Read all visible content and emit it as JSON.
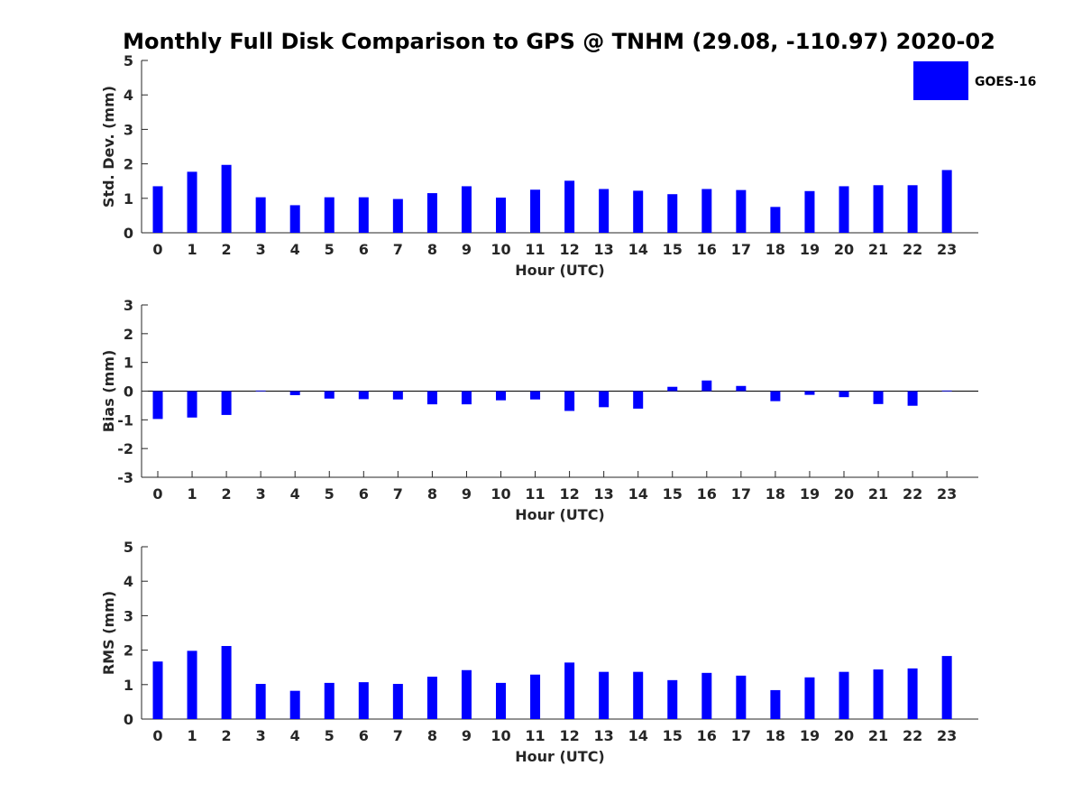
{
  "title": "Monthly Full Disk Comparison to GPS @ TNHM (29.08, -110.97) 2020-02",
  "legend": {
    "label": "GOES-16",
    "placement": "top-right"
  },
  "colors": {
    "bar": "#0000ff",
    "axis": "#262626"
  },
  "chart_data": [
    {
      "type": "bar",
      "categories": [
        "0",
        "1",
        "2",
        "3",
        "4",
        "5",
        "6",
        "7",
        "8",
        "9",
        "10",
        "11",
        "12",
        "13",
        "14",
        "15",
        "16",
        "17",
        "18",
        "19",
        "20",
        "21",
        "22",
        "23"
      ],
      "series": [
        {
          "name": "GOES-16",
          "values": [
            1.35,
            1.77,
            1.97,
            1.03,
            0.8,
            1.03,
            1.03,
            0.98,
            1.15,
            1.35,
            1.02,
            1.25,
            1.51,
            1.27,
            1.22,
            1.12,
            1.27,
            1.24,
            0.75,
            1.21,
            1.35,
            1.38,
            1.38,
            1.82
          ]
        }
      ],
      "xlabel": "Hour (UTC)",
      "ylabel": "Std. Dev. (mm)",
      "ylim": [
        0,
        5
      ],
      "yticks": [
        "0",
        "1",
        "2",
        "3",
        "4",
        "5"
      ],
      "grid": false
    },
    {
      "type": "bar",
      "categories": [
        "0",
        "1",
        "2",
        "3",
        "4",
        "5",
        "6",
        "7",
        "8",
        "9",
        "10",
        "11",
        "12",
        "13",
        "14",
        "15",
        "16",
        "17",
        "18",
        "19",
        "20",
        "21",
        "22",
        "23"
      ],
      "series": [
        {
          "name": "GOES-16",
          "values": [
            -0.97,
            -0.92,
            -0.83,
            0.02,
            -0.14,
            -0.26,
            -0.28,
            -0.29,
            -0.46,
            -0.46,
            -0.32,
            -0.29,
            -0.69,
            -0.56,
            -0.61,
            0.15,
            0.37,
            0.18,
            -0.35,
            -0.13,
            -0.21,
            -0.45,
            -0.51,
            0.02
          ]
        }
      ],
      "xlabel": "Hour (UTC)",
      "ylabel": "Bias (mm)",
      "ylim": [
        -3,
        3
      ],
      "yticks": [
        "-3",
        "-2",
        "-1",
        "0",
        "1",
        "2",
        "3"
      ],
      "grid": false
    },
    {
      "type": "bar",
      "categories": [
        "0",
        "1",
        "2",
        "3",
        "4",
        "5",
        "6",
        "7",
        "8",
        "9",
        "10",
        "11",
        "12",
        "13",
        "14",
        "15",
        "16",
        "17",
        "18",
        "19",
        "20",
        "21",
        "22",
        "23"
      ],
      "series": [
        {
          "name": "GOES-16",
          "values": [
            1.67,
            1.98,
            2.12,
            1.02,
            0.82,
            1.05,
            1.07,
            1.02,
            1.23,
            1.42,
            1.05,
            1.29,
            1.64,
            1.37,
            1.37,
            1.13,
            1.34,
            1.26,
            0.84,
            1.21,
            1.37,
            1.44,
            1.47,
            1.83
          ]
        }
      ],
      "xlabel": "Hour (UTC)",
      "ylabel": "RMS (mm)",
      "ylim": [
        0,
        5
      ],
      "yticks": [
        "0",
        "1",
        "2",
        "3",
        "4",
        "5"
      ],
      "grid": false
    }
  ]
}
